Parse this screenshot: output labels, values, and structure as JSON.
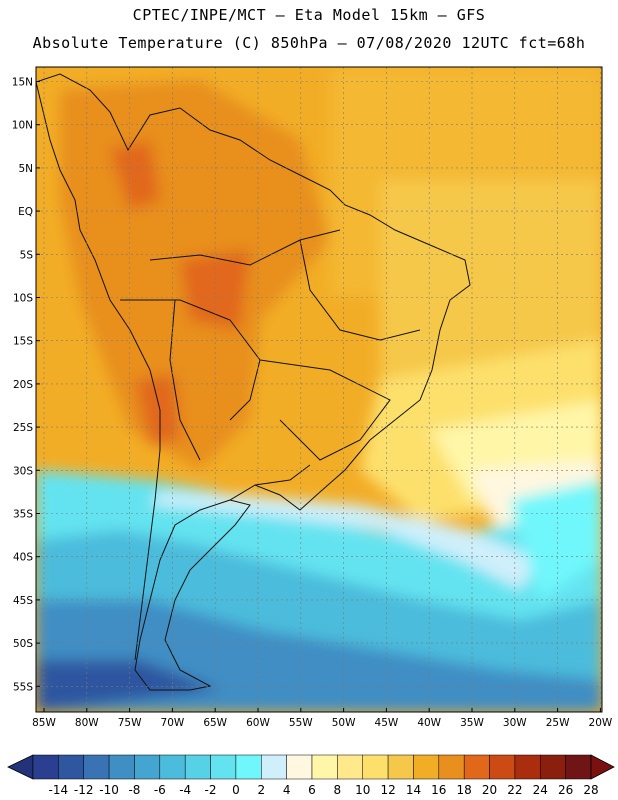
{
  "header": {
    "line1": "CPTEC/INPE/MCT –  Eta Model 15km – GFS",
    "line2": "Absolute Temperature (C) 850hPa – 07/08/2020 12UTC fct=68h"
  },
  "map": {
    "lat_labels": [
      "15N",
      "10N",
      "5N",
      "EQ",
      "5S",
      "10S",
      "15S",
      "20S",
      "25S",
      "30S",
      "35S",
      "40S",
      "45S",
      "50S",
      "55S"
    ],
    "lon_labels": [
      "85W",
      "80W",
      "75W",
      "70W",
      "65W",
      "60W",
      "55W",
      "50W",
      "45W",
      "40W",
      "35W",
      "30W",
      "25W",
      "20W"
    ],
    "colors": {
      "land_border": "#111111",
      "grid": "#7a7a7a"
    }
  },
  "colorbar": {
    "labels": [
      "-14",
      "-12",
      "-10",
      "-8",
      "-6",
      "-4",
      "-2",
      "0",
      "2",
      "4",
      "6",
      "8",
      "10",
      "12",
      "14",
      "16",
      "18",
      "20",
      "22",
      "24",
      "26",
      "28"
    ],
    "colors": [
      "#2a3f8f",
      "#2f57a0",
      "#3a73b4",
      "#3f8ec4",
      "#44a6d0",
      "#4bbcdc",
      "#57d1e6",
      "#63e3f0",
      "#6ff7fb",
      "#cfeffb",
      "#fff7e0",
      "#fff6a8",
      "#ffe98a",
      "#fde06c",
      "#f6c84a",
      "#f2ad26",
      "#e88f1e",
      "#e1681a",
      "#cc4a13",
      "#aa2d0e",
      "#8b1f0d",
      "#6f1515"
    ],
    "low_arrow_color": "#22337a",
    "high_arrow_color": "#7a1010"
  }
}
